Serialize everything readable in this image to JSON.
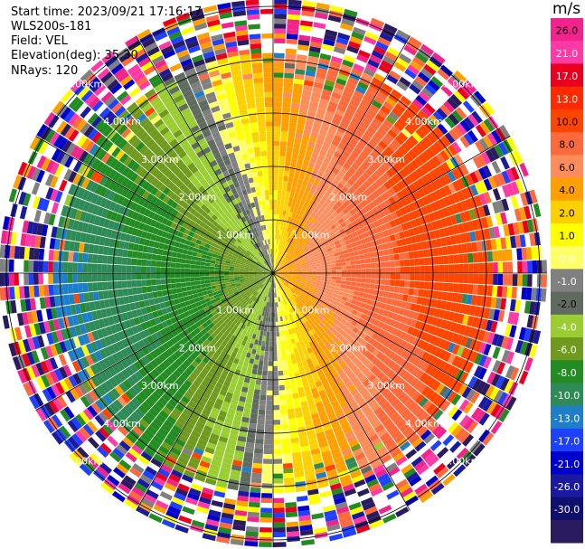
{
  "header": {
    "start_time": "Start time: 2023/09/21 17:16:17",
    "instrument": "WLS200s-181",
    "field": "Field: VEL",
    "elevation": "Elevation(deg): 35.30",
    "nrays": "NRays: 120"
  },
  "range_labels": [
    "1.00km",
    "2.00km",
    "3.00km",
    "4.00km",
    "5.00km"
  ],
  "colorbar": {
    "unit": "m/s",
    "ticks": [
      "26.0",
      "21.0",
      "17.0",
      "13.0",
      "10.0",
      "8.0",
      "6.0",
      "4.0",
      "2.0",
      "1.0",
      "0.0",
      "-1.0",
      "-2.0",
      "-4.0",
      "-6.0",
      "-8.0",
      "-10.0",
      "-13.0",
      "-17.0",
      "-21.0",
      "-26.0",
      "-30.0"
    ],
    "colors": [
      "#f2248b",
      "#ff3aa6",
      "#e8001e",
      "#ff2a00",
      "#ff4500",
      "#ff6a3c",
      "#ff8c5a",
      "#ffa000",
      "#ffd000",
      "#ffff00",
      "#ffff66",
      "#808080",
      "#5e6b5e",
      "#9acd32",
      "#6f9a1e",
      "#228b22",
      "#2e8b57",
      "#1e7fc8",
      "#2040ff",
      "#0000cd",
      "#1a1aa0",
      "#0f0f70",
      "#2a1a5e"
    ]
  }
}
